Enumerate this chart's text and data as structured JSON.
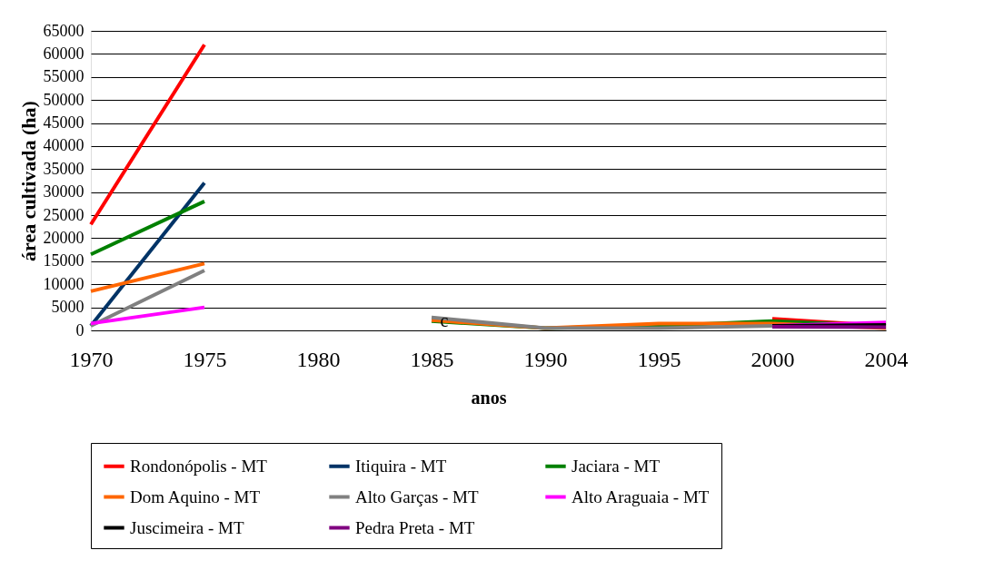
{
  "chart_data": {
    "type": "line",
    "xlabel": "anos",
    "ylabel": "área cultivada (ha)",
    "categories": [
      "1970",
      "1975",
      "1980",
      "1985",
      "1990",
      "1995",
      "2000",
      "2004"
    ],
    "ylim": [
      0,
      65000
    ],
    "yticks": [
      0,
      5000,
      10000,
      15000,
      20000,
      25000,
      30000,
      35000,
      40000,
      45000,
      50000,
      55000,
      60000,
      65000
    ],
    "grid": "y",
    "legend": "bottom",
    "marker": "none",
    "line_style": "solid",
    "annotations": [
      {
        "text": "c",
        "x": "1985",
        "y": 2000
      }
    ],
    "series": [
      {
        "name": "Rondonópolis - MT",
        "color": "#ff0000",
        "values": [
          23000,
          62000,
          null,
          null,
          null,
          null,
          2500,
          1000
        ]
      },
      {
        "name": "Itiquira - MT",
        "color": "#003366",
        "values": [
          1000,
          32000,
          null,
          null,
          null,
          null,
          null,
          null
        ]
      },
      {
        "name": "Jaciara - MT",
        "color": "#008000",
        "values": [
          16500,
          28000,
          null,
          2000,
          500,
          1000,
          2000,
          1000
        ]
      },
      {
        "name": "Dom Aquino - MT",
        "color": "#ff6600",
        "values": [
          8500,
          14500,
          null,
          2200,
          500,
          1500,
          1500,
          500
        ]
      },
      {
        "name": "Alto Garças -  MT",
        "color": "#808080",
        "values": [
          1000,
          13000,
          null,
          2800,
          500,
          500,
          1000,
          null
        ]
      },
      {
        "name": "Alto Araguaia - MT",
        "color": "#ff00ff",
        "values": [
          1500,
          5000,
          null,
          null,
          null,
          null,
          1000,
          1700
        ]
      },
      {
        "name": "Juscimeira - MT",
        "color": "#000000",
        "values": [
          null,
          null,
          null,
          null,
          null,
          null,
          1000,
          1200
        ]
      },
      {
        "name": "Pedra Preta -  MT",
        "color": "#800080",
        "values": [
          null,
          null,
          null,
          null,
          null,
          null,
          800,
          700
        ]
      }
    ]
  }
}
